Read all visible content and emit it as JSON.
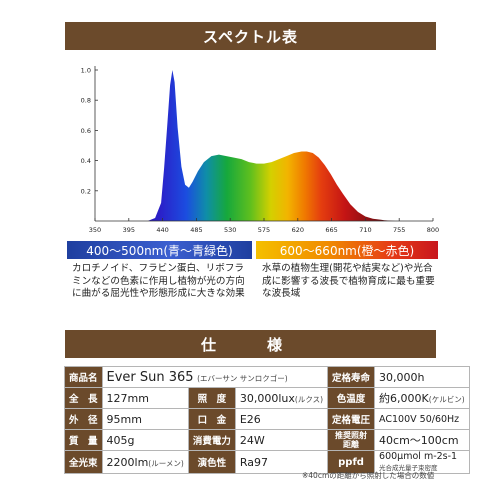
{
  "header": {
    "title": "スペクトル表"
  },
  "chart_data": {
    "type": "area",
    "x_ticks": [
      350,
      395,
      440,
      485,
      530,
      575,
      620,
      665,
      710,
      755,
      800
    ],
    "y_ticks": [
      "0.2",
      "0.4",
      "0.6",
      "0.8",
      "1.0"
    ],
    "xlim": [
      350,
      800
    ],
    "ylim": [
      0,
      1.0
    ],
    "x": [
      350,
      420,
      430,
      438,
      442,
      446,
      450,
      453,
      456,
      460,
      465,
      470,
      475,
      480,
      487,
      495,
      505,
      515,
      525,
      535,
      545,
      555,
      565,
      575,
      585,
      595,
      605,
      615,
      625,
      632,
      640,
      648,
      656,
      664,
      672,
      680,
      690,
      700,
      710,
      720,
      735,
      750,
      770,
      800
    ],
    "y": [
      0,
      0,
      0.02,
      0.12,
      0.35,
      0.62,
      0.9,
      1.0,
      0.92,
      0.62,
      0.36,
      0.24,
      0.22,
      0.26,
      0.33,
      0.39,
      0.43,
      0.44,
      0.43,
      0.42,
      0.41,
      0.39,
      0.38,
      0.38,
      0.39,
      0.41,
      0.43,
      0.45,
      0.46,
      0.46,
      0.45,
      0.42,
      0.37,
      0.31,
      0.24,
      0.18,
      0.11,
      0.06,
      0.03,
      0.015,
      0.005,
      0,
      0,
      0
    ]
  },
  "bands": {
    "blue": "400〜500nm(青〜青緑色)",
    "red": "600〜660nm(橙〜赤色)"
  },
  "desc": {
    "left": "カロチノイド、フラビン蛋白、リボフラミンなどの色素に作用し植物が光の方向に曲がる屈光性や形態形成に大きな効果",
    "right": "水草の植物生理(開花や結実など)や光合成に影響する波長で植物育成に最も重要な波長域"
  },
  "spec": {
    "title": "仕　様",
    "r1": {
      "l1": "商品名",
      "v1": "Ever Sun 365",
      "v1b": "(エバーサン サンロクゴー)",
      "l2": "定格寿命",
      "v2": "30,000h"
    },
    "r2": {
      "l1": "全　長",
      "v1": "127mm",
      "l2": "照　度",
      "v2": "30,000lux",
      "v2b": "(ルクス)",
      "l3": "色温度",
      "v3": "約6,000K",
      "v3b": "(ケルビン)"
    },
    "r3": {
      "l1": "外　径",
      "v1": "95mm",
      "l2": "口　金",
      "v2": "E26",
      "l3": "定格電圧",
      "v3": "AC100V 50/60Hz"
    },
    "r4": {
      "l1": "質　量",
      "v1": "405g",
      "l2": "消費電力",
      "v2": "24W",
      "l3": "推奨照射距離",
      "v3": "40cm〜100cm"
    },
    "r5": {
      "l1": "全光束",
      "v1": "2200lm",
      "v1b": "(ルーメン)",
      "l2": "演色性",
      "v2": "Ra97",
      "l3": "ppfd",
      "v3": "600μmol m-2s-1",
      "v3b": "光合成光量子束密度"
    },
    "note": "※40cmの距離から照射した場合の数値"
  },
  "colors": {
    "brand": "#6b4a2b"
  }
}
